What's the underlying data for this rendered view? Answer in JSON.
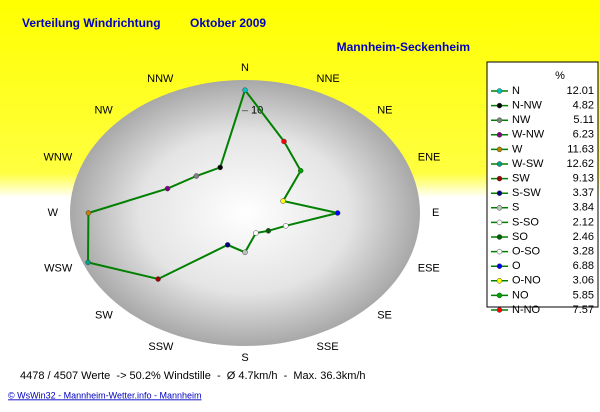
{
  "chart_data": {
    "type": "radar",
    "title": "Verteilung Windrichtung",
    "period": "Oktober 2009",
    "location": "Mannheim-Seckenheim",
    "directions": [
      "N",
      "NNE",
      "NE",
      "ENE",
      "E",
      "ESE",
      "SE",
      "SSE",
      "S",
      "SSW",
      "SW",
      "WSW",
      "W",
      "WNW",
      "NW",
      "NNW"
    ],
    "categories": [
      "N",
      "N-NW",
      "NW",
      "W-NW",
      "W",
      "W-SW",
      "SW",
      "S-SW",
      "S",
      "S-SO",
      "SO",
      "O-SO",
      "O",
      "O-NO",
      "NO",
      "N-NO"
    ],
    "values": [
      12.01,
      4.82,
      5.11,
      6.23,
      11.63,
      12.62,
      9.13,
      3.37,
      3.84,
      2.12,
      2.46,
      3.28,
      6.88,
      3.06,
      5.85,
      7.57
    ],
    "colors": [
      "#00c0c0",
      "#000000",
      "#808080",
      "#800080",
      "#c08000",
      "#00a080",
      "#a00000",
      "#000080",
      "#c0c0c0",
      "#ffffff",
      "#006000",
      "#ffffff",
      "#0000ff",
      "#ffff00",
      "#00a000",
      "#ff0000"
    ],
    "line_color": "#008000",
    "legend_title": "%",
    "rlim": [
      0,
      13
    ],
    "rticks": [
      10
    ],
    "footer": "4478 / 4507 Werte  -> 50.2% Windstille  -  Ø 4.7km/h  -  Max. 36.3km/h",
    "credits": "© WsWin32 - Mannheim-Wetter.info - Mannheim"
  }
}
